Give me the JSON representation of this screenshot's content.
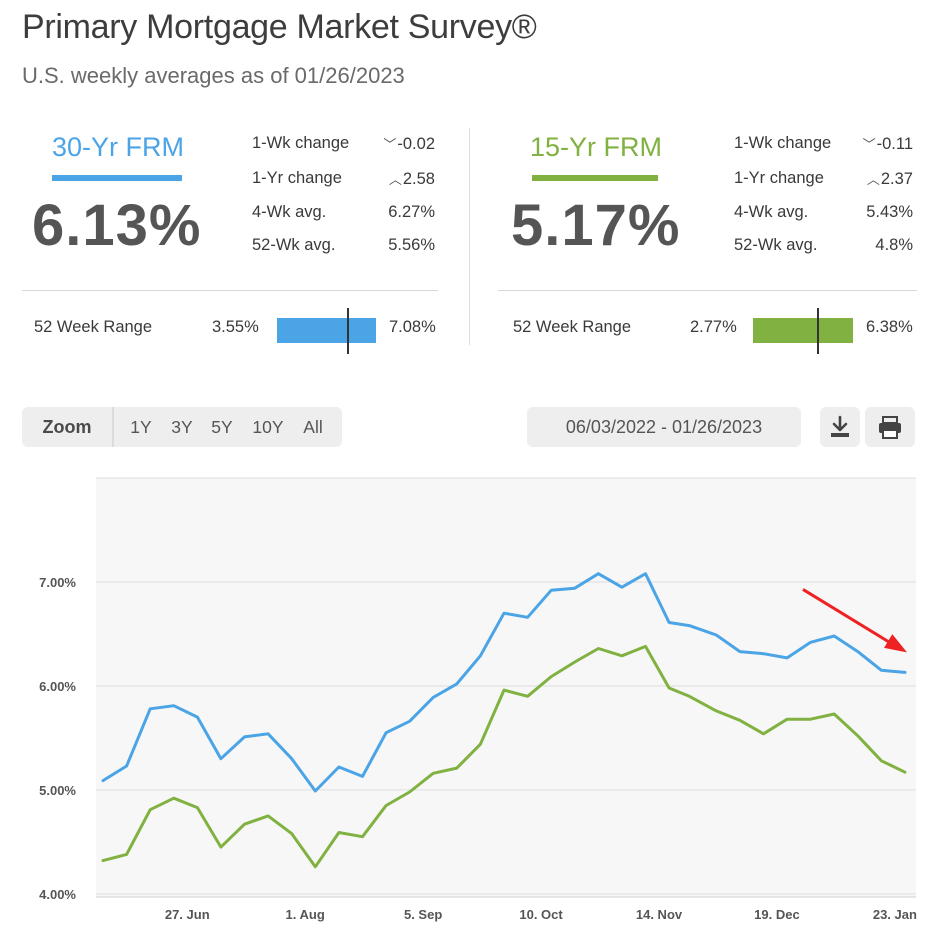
{
  "header": {
    "title": "Primary Mortgage Market Survey®",
    "subtitle": "U.S. weekly averages as of 01/26/2023"
  },
  "frm30": {
    "label": "30-Yr FRM",
    "color": "#4ba4e6",
    "rate": "6.13%",
    "wk_change_label": "1-Wk change",
    "wk_change": "-0.02",
    "wk_dir": "down",
    "yr_change_label": "1-Yr change",
    "yr_change": "2.58",
    "yr_dir": "up",
    "avg4_label": "4-Wk avg.",
    "avg4": "6.27%",
    "avg52_label": "52-Wk avg.",
    "avg52": "5.56%",
    "range_label": "52 Week Range",
    "range_low": "3.55%",
    "range_high": "7.08%"
  },
  "frm15": {
    "label": "15-Yr FRM",
    "color": "#80b141",
    "rate": "5.17%",
    "wk_change_label": "1-Wk change",
    "wk_change": "-0.11",
    "wk_dir": "down",
    "yr_change_label": "1-Yr change",
    "yr_change": "2.37",
    "yr_dir": "up",
    "avg4_label": "4-Wk avg.",
    "avg4": "5.43%",
    "avg52_label": "52-Wk avg.",
    "avg52": "4.8%",
    "range_label": "52 Week Range",
    "range_low": "2.77%",
    "range_high": "6.38%"
  },
  "controls": {
    "zoom_label": "Zoom",
    "zoom_options": [
      "1Y",
      "3Y",
      "5Y",
      "10Y",
      "All"
    ],
    "date_range": "06/03/2022 - 01/26/2023",
    "download_icon": "download-icon",
    "print_icon": "print-icon"
  },
  "chart_data": {
    "type": "line",
    "x": [
      "2022-06-02",
      "2022-06-09",
      "2022-06-16",
      "2022-06-23",
      "2022-06-30",
      "2022-07-07",
      "2022-07-14",
      "2022-07-21",
      "2022-07-28",
      "2022-08-04",
      "2022-08-11",
      "2022-08-18",
      "2022-08-25",
      "2022-09-01",
      "2022-09-08",
      "2022-09-15",
      "2022-09-22",
      "2022-09-29",
      "2022-10-06",
      "2022-10-13",
      "2022-10-20",
      "2022-10-27",
      "2022-11-03",
      "2022-11-10",
      "2022-11-17",
      "2022-11-23",
      "2022-12-01",
      "2022-12-08",
      "2022-12-15",
      "2022-12-22",
      "2022-12-29",
      "2023-01-05",
      "2023-01-12",
      "2023-01-19",
      "2023-01-26"
    ],
    "series": [
      {
        "values": [
          5.09,
          5.23,
          5.78,
          5.81,
          5.7,
          5.3,
          5.51,
          5.54,
          5.3,
          4.99,
          5.22,
          5.13,
          5.55,
          5.66,
          5.89,
          6.02,
          6.29,
          6.7,
          6.66,
          6.92,
          6.94,
          7.08,
          6.95,
          7.08,
          6.61,
          6.58,
          6.49,
          6.33,
          6.31,
          6.27,
          6.42,
          6.48,
          6.33,
          6.15,
          6.13
        ],
        "color": "#4ba4e6"
      },
      {
        "values": [
          4.32,
          4.38,
          4.81,
          4.92,
          4.83,
          4.45,
          4.67,
          4.75,
          4.58,
          4.26,
          4.59,
          4.55,
          4.85,
          4.98,
          5.16,
          5.21,
          5.44,
          5.96,
          5.9,
          6.09,
          6.23,
          6.36,
          6.29,
          6.38,
          5.98,
          5.9,
          5.76,
          5.67,
          5.54,
          5.68,
          5.68,
          5.73,
          5.52,
          5.28,
          5.17
        ],
        "color": "#80b141"
      }
    ],
    "ylim": [
      3.97,
      8.0
    ],
    "y_ticks": [
      "4.00%",
      "5.00%",
      "6.00%",
      "7.00%"
    ],
    "x_tick_labels": [
      {
        "label": "27. Jun",
        "date": "2022-06-27"
      },
      {
        "label": "1. Aug",
        "date": "2022-08-01"
      },
      {
        "label": "5. Sep",
        "date": "2022-09-05"
      },
      {
        "label": "10. Oct",
        "date": "2022-10-10"
      },
      {
        "label": "14. Nov",
        "date": "2022-11-14"
      },
      {
        "label": "19. Dec",
        "date": "2022-12-19"
      },
      {
        "label": "23. Jan",
        "date": "2023-01-23"
      }
    ],
    "grid": true,
    "annotation": {
      "type": "arrow",
      "color": "#ee2222"
    }
  }
}
